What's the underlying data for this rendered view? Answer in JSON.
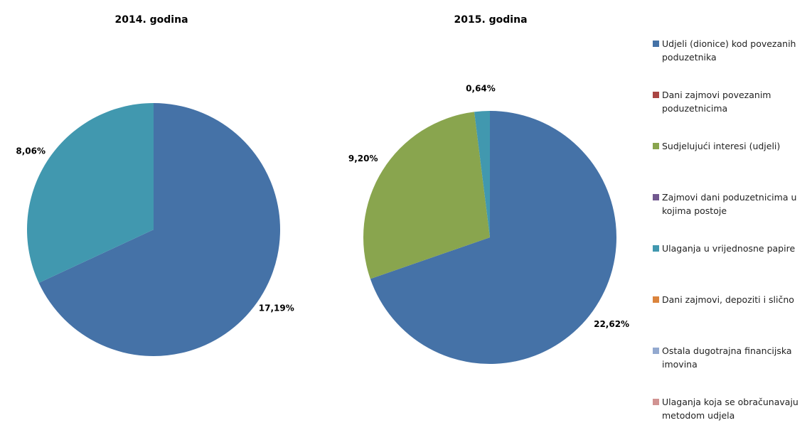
{
  "chart_data": [
    {
      "type": "pie",
      "title": "2014. godina",
      "slices": [
        {
          "name": "Udjeli (dionice) kod povezanih poduzetnika",
          "value": 17.19,
          "label": "17,19%",
          "color": "#4572A7"
        },
        {
          "name": "Ulaganja u vrijednosne papire",
          "value": 8.06,
          "label": "8,06%",
          "color": "#4198AF"
        }
      ]
    },
    {
      "type": "pie",
      "title": "2015. godina",
      "slices": [
        {
          "name": "Udjeli (dionice) kod povezanih poduzetnika",
          "value": 22.62,
          "label": "22,62%",
          "color": "#4572A7"
        },
        {
          "name": "Sudjelujući interesi (udjeli)",
          "value": 9.2,
          "label": "9,20%",
          "color": "#89A54E"
        },
        {
          "name": "Ulaganja u vrijednosne papire",
          "value": 0.64,
          "label": "0,64%",
          "color": "#4198AF"
        }
      ]
    }
  ],
  "legend": {
    "position": "right",
    "items": [
      {
        "label": "Udjeli (dionice) kod povezanih poduzetnika",
        "color": "#4572A7"
      },
      {
        "label": "Dani zajmovi povezanim poduzetnicima",
        "color": "#AA4643"
      },
      {
        "label": "Sudjelujući interesi (udjeli)",
        "color": "#89A54E"
      },
      {
        "label": "Zajmovi dani poduzetnicima u kojima postoje",
        "color": "#71588F"
      },
      {
        "label": "Ulaganja u vrijednosne papire",
        "color": "#4198AF"
      },
      {
        "label": "Dani zajmovi, depoziti i slično",
        "color": "#DB843D"
      },
      {
        "label": "Ostala dugotrajna financijska imovina",
        "color": "#93A9CF"
      },
      {
        "label": "Ulaganja koja se obračunavaju metodom udjela",
        "color": "#D19392"
      }
    ]
  }
}
